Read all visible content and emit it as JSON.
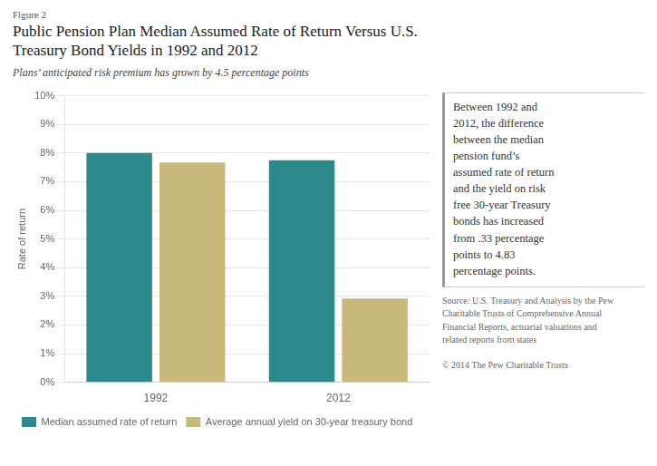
{
  "chart_data": {
    "type": "bar",
    "figure_label": "Figure 2",
    "title": "Public Pension Plan Median Assumed Rate of Return Versus U.S.\nTreasury Bond Yields in 1992 and 2012",
    "subtitle": "Plans’ anticipated risk premium has grown by 4.5 percentage points",
    "ylabel": "Rate of return",
    "categories": [
      "1992",
      "2012"
    ],
    "series": [
      {
        "name": "Median assumed rate of return",
        "color": "#2a8a8c",
        "values": [
          8.0,
          7.75
        ]
      },
      {
        "name": "Average annual yield on 30-year treasury bond",
        "color": "#c8b97a",
        "values": [
          7.67,
          2.92
        ]
      }
    ],
    "ylim": [
      0,
      10
    ],
    "yticks": [
      {
        "value": 0,
        "label": "0%"
      },
      {
        "value": 1,
        "label": "1%"
      },
      {
        "value": 2,
        "label": "2%"
      },
      {
        "value": 3,
        "label": "3%"
      },
      {
        "value": 4,
        "label": "4%"
      },
      {
        "value": 5,
        "label": "5%"
      },
      {
        "value": 6,
        "label": "6%"
      },
      {
        "value": 7,
        "label": "7%"
      },
      {
        "value": 8,
        "label": "8%"
      },
      {
        "value": 9,
        "label": "9%"
      },
      {
        "value": 10,
        "label": "10%"
      }
    ],
    "grid": true,
    "legend": "bottom",
    "annotations": [
      "Between 1992 and\n2012, the difference\nbetween the median\npension fund’s\nassumed rate of return\nand the yield on risk\nfree 30-year Treasury\nbonds has increased\nfrom .33 percentage\npoints to 4.83\npercentage points.",
      "Source: U.S. Treasury and Analysis by the Pew\nCharitable Trusts of Comprehensive Annual\nFinancial Reports, actuarial valuations and\nrelated reports from states",
      "© 2014 The Pew Charitable Trusts"
    ]
  }
}
